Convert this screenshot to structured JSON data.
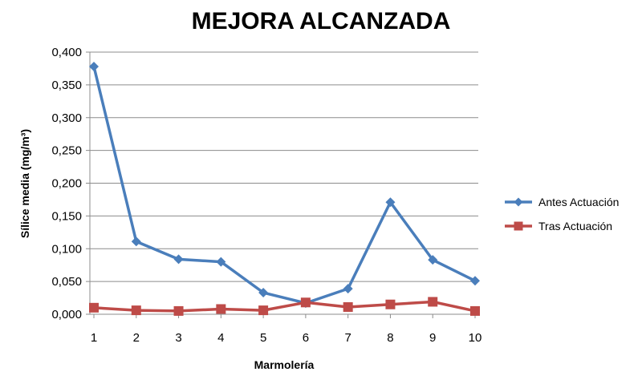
{
  "chart_data": {
    "type": "line",
    "title": "MEJORA ALCANZADA",
    "xlabel": "Marmolería",
    "ylabel": "Sílice media (mg/m³)",
    "categories": [
      "1",
      "2",
      "3",
      "4",
      "5",
      "6",
      "7",
      "8",
      "9",
      "10"
    ],
    "ylim": [
      0,
      0.4
    ],
    "yticks": [
      "0,000",
      "0,050",
      "0,100",
      "0,150",
      "0,200",
      "0,250",
      "0,300",
      "0,350",
      "0,400"
    ],
    "grid": true,
    "legend_position": "right",
    "series": [
      {
        "name": "Antes Actuación",
        "color": "#4a7ebb",
        "marker": "diamond",
        "values": [
          0.378,
          0.111,
          0.084,
          0.08,
          0.033,
          0.017,
          0.039,
          0.171,
          0.083,
          0.051
        ]
      },
      {
        "name": "Tras Actuación",
        "color": "#be4b48",
        "marker": "square",
        "values": [
          0.01,
          0.006,
          0.005,
          0.008,
          0.006,
          0.018,
          0.011,
          0.015,
          0.019,
          0.005
        ]
      }
    ]
  }
}
